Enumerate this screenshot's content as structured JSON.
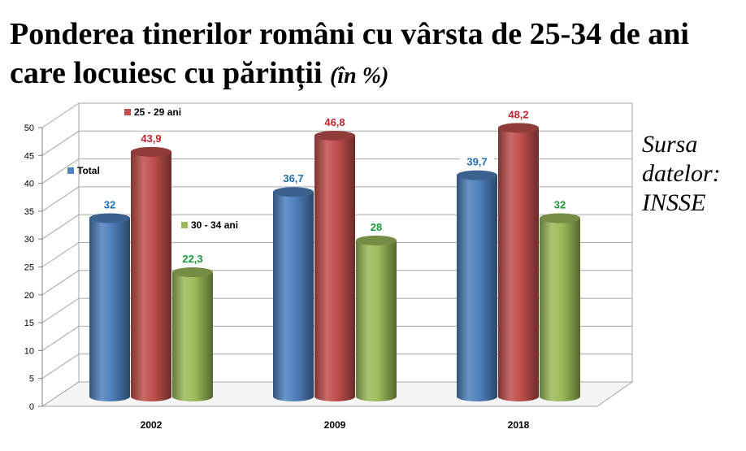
{
  "chart_data": {
    "type": "bar",
    "title": "Ponderea tinerilor români cu vârsta  de 25-34 de ani care locuiesc cu părinții",
    "title_unit": "(în %)",
    "categories": [
      "2002",
      "2009",
      "2018"
    ],
    "series": [
      {
        "name": "Total",
        "values": [
          32,
          36.7,
          39.7
        ],
        "labels": [
          "32",
          "36,7",
          "39,7"
        ],
        "color": "#4f81bd",
        "label_color": "#1f6fb2"
      },
      {
        "name": "25 - 29 ani",
        "values": [
          43.9,
          46.8,
          48.2
        ],
        "labels": [
          "43,9",
          "46,8",
          "48,2"
        ],
        "color": "#c0504d",
        "label_color": "#c0262d"
      },
      {
        "name": "30 - 34 ani",
        "values": [
          22.3,
          28,
          32
        ],
        "labels": [
          "22,3",
          "28",
          "32"
        ],
        "color": "#9bbb59",
        "label_color": "#1a9a3a"
      }
    ],
    "ylim": [
      0,
      50
    ],
    "yticks": [
      0,
      5,
      10,
      15,
      20,
      25,
      30,
      35,
      40,
      45,
      50
    ],
    "grid": true,
    "view": "3d"
  },
  "source_note": "Sursa datelor: INSSE"
}
